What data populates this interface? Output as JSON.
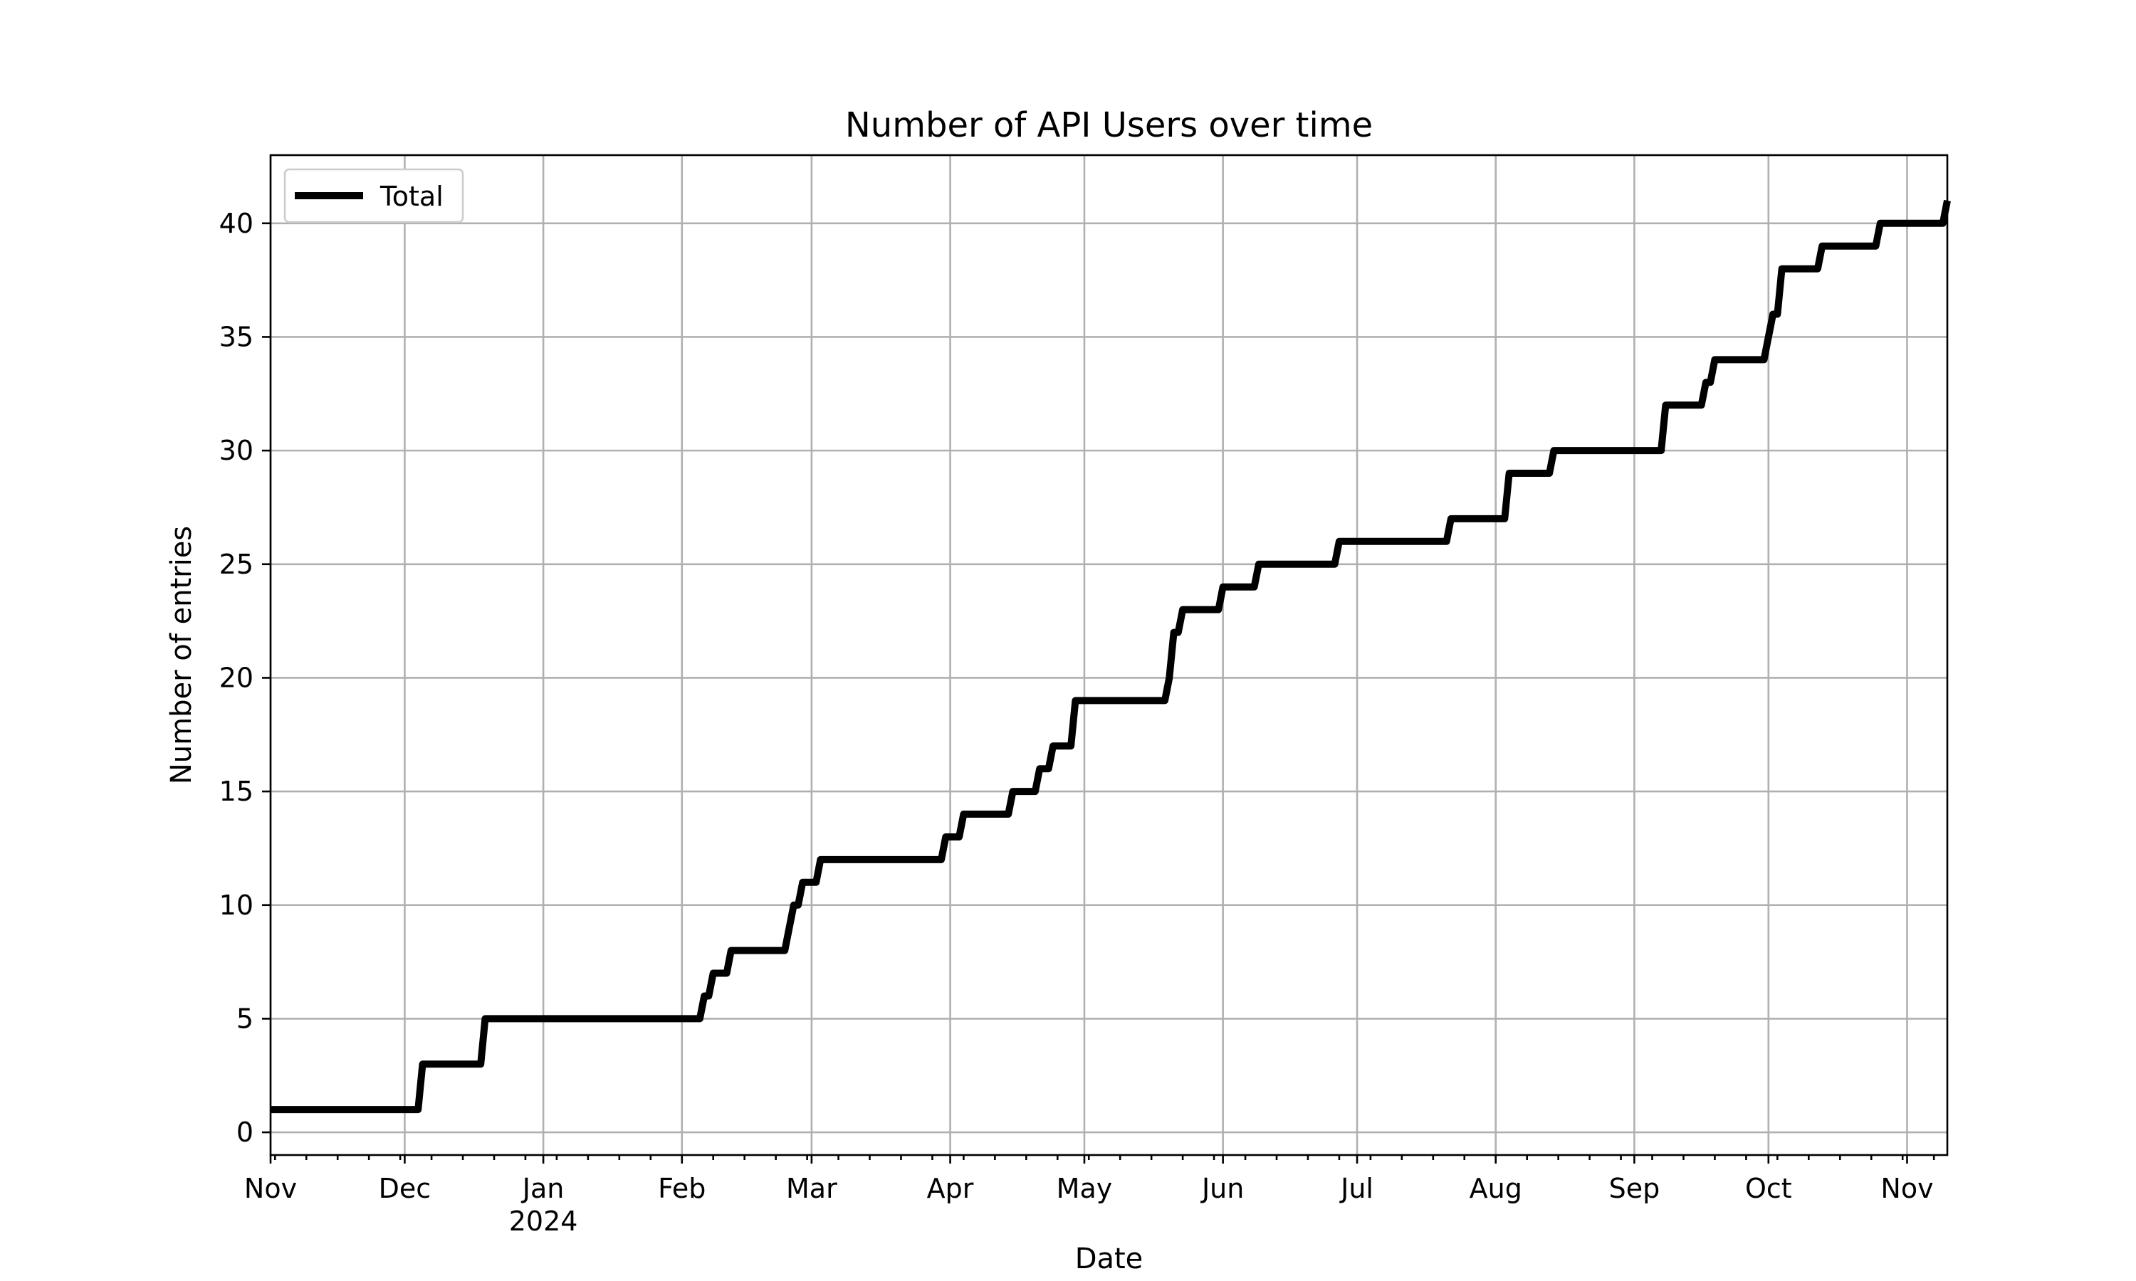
{
  "chart_data": {
    "type": "line",
    "title": "Number of API Users over time",
    "xlabel": "Date",
    "ylabel": "Number of entries",
    "x_range": [
      "2023-11-01",
      "2024-11-10"
    ],
    "ylim": [
      -1,
      43
    ],
    "y_ticks": [
      0,
      5,
      10,
      15,
      20,
      25,
      30,
      35,
      40
    ],
    "x_ticks": [
      {
        "date": "2023-11-01",
        "label": "Nov",
        "sublabel": ""
      },
      {
        "date": "2023-12-01",
        "label": "Dec",
        "sublabel": ""
      },
      {
        "date": "2024-01-01",
        "label": "Jan",
        "sublabel": "2024"
      },
      {
        "date": "2024-02-01",
        "label": "Feb",
        "sublabel": ""
      },
      {
        "date": "2024-03-01",
        "label": "Mar",
        "sublabel": ""
      },
      {
        "date": "2024-04-01",
        "label": "Apr",
        "sublabel": ""
      },
      {
        "date": "2024-05-01",
        "label": "May",
        "sublabel": ""
      },
      {
        "date": "2024-06-01",
        "label": "Jun",
        "sublabel": ""
      },
      {
        "date": "2024-07-01",
        "label": "Jul",
        "sublabel": ""
      },
      {
        "date": "2024-08-01",
        "label": "Aug",
        "sublabel": ""
      },
      {
        "date": "2024-09-01",
        "label": "Sep",
        "sublabel": ""
      },
      {
        "date": "2024-10-01",
        "label": "Oct",
        "sublabel": ""
      },
      {
        "date": "2024-11-01",
        "label": "Nov",
        "sublabel": ""
      }
    ],
    "grid": true,
    "legend_position": "top-left",
    "series": [
      {
        "name": "Total",
        "color": "#000000",
        "points": [
          [
            "2023-11-01",
            1
          ],
          [
            "2023-12-04",
            1
          ],
          [
            "2023-12-05",
            3
          ],
          [
            "2023-12-18",
            3
          ],
          [
            "2023-12-19",
            5
          ],
          [
            "2024-02-05",
            5
          ],
          [
            "2024-02-06",
            6
          ],
          [
            "2024-02-07",
            6
          ],
          [
            "2024-02-08",
            7
          ],
          [
            "2024-02-11",
            7
          ],
          [
            "2024-02-12",
            8
          ],
          [
            "2024-02-24",
            8
          ],
          [
            "2024-02-26",
            10
          ],
          [
            "2024-02-27",
            10
          ],
          [
            "2024-02-28",
            11
          ],
          [
            "2024-03-02",
            11
          ],
          [
            "2024-03-03",
            12
          ],
          [
            "2024-03-30",
            12
          ],
          [
            "2024-03-31",
            13
          ],
          [
            "2024-04-03",
            13
          ],
          [
            "2024-04-04",
            14
          ],
          [
            "2024-04-14",
            14
          ],
          [
            "2024-04-15",
            15
          ],
          [
            "2024-04-20",
            15
          ],
          [
            "2024-04-21",
            16
          ],
          [
            "2024-04-23",
            16
          ],
          [
            "2024-04-24",
            17
          ],
          [
            "2024-04-28",
            17
          ],
          [
            "2024-04-29",
            19
          ],
          [
            "2024-05-19",
            19
          ],
          [
            "2024-05-20",
            20
          ],
          [
            "2024-05-21",
            22
          ],
          [
            "2024-05-22",
            22
          ],
          [
            "2024-05-23",
            23
          ],
          [
            "2024-05-31",
            23
          ],
          [
            "2024-06-01",
            24
          ],
          [
            "2024-06-08",
            24
          ],
          [
            "2024-06-09",
            25
          ],
          [
            "2024-06-26",
            25
          ],
          [
            "2024-06-27",
            26
          ],
          [
            "2024-07-21",
            26
          ],
          [
            "2024-07-22",
            27
          ],
          [
            "2024-08-03",
            27
          ],
          [
            "2024-08-04",
            29
          ],
          [
            "2024-08-13",
            29
          ],
          [
            "2024-08-14",
            30
          ],
          [
            "2024-09-07",
            30
          ],
          [
            "2024-09-08",
            32
          ],
          [
            "2024-09-16",
            32
          ],
          [
            "2024-09-17",
            33
          ],
          [
            "2024-09-18",
            33
          ],
          [
            "2024-09-19",
            34
          ],
          [
            "2024-09-30",
            34
          ],
          [
            "2024-10-02",
            36
          ],
          [
            "2024-10-03",
            36
          ],
          [
            "2024-10-04",
            38
          ],
          [
            "2024-10-12",
            38
          ],
          [
            "2024-10-13",
            39
          ],
          [
            "2024-10-25",
            39
          ],
          [
            "2024-10-26",
            40
          ],
          [
            "2024-11-09",
            40
          ],
          [
            "2024-11-10",
            41
          ]
        ]
      }
    ]
  }
}
